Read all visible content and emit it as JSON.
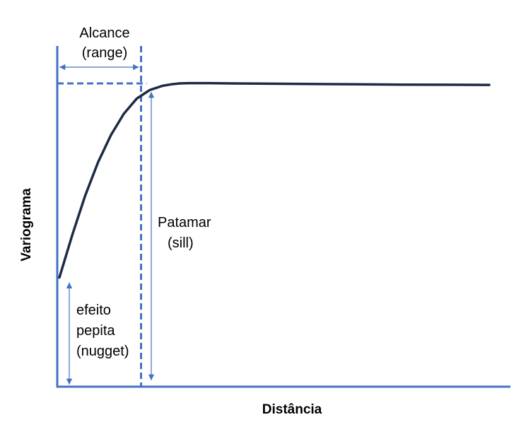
{
  "chart_data": {
    "type": "line",
    "title": "",
    "xlabel": "Distância",
    "ylabel": "Variograma",
    "grid": false,
    "legend": "none",
    "xlim": [
      0,
      100
    ],
    "ylim": [
      0,
      100
    ],
    "series": [
      {
        "x": [
          0,
          3,
          6,
          9,
          12,
          15,
          18,
          21,
          24,
          26,
          28,
          30,
          35,
          40,
          60,
          80,
          100
        ],
        "y": [
          36,
          50,
          63,
          74,
          83,
          90,
          95,
          97.8,
          99.2,
          99.7,
          100,
          100.1,
          100.1,
          100,
          99.8,
          99.6,
          99.5
        ]
      }
    ],
    "color": "#1c2b44",
    "accent_color": "#4472c4",
    "annotations": {
      "range": {
        "line1": "Alcance",
        "line2": "(range)",
        "x": 19
      },
      "sill": {
        "line1": "Patamar",
        "line2": "(sill)",
        "level": 100
      },
      "nugget": {
        "line1": "efeito",
        "line2": "pepita",
        "line3": "(nugget)",
        "level": 36
      }
    }
  }
}
